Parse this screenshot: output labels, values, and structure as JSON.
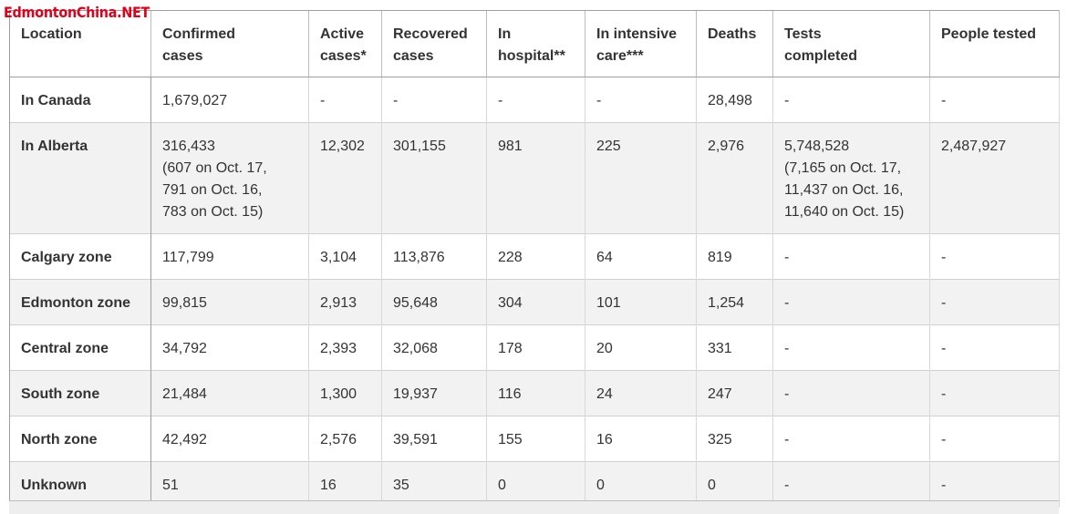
{
  "watermark": "EdmontonChina.NET",
  "table": {
    "headers": [
      "Location",
      "Confirmed\ncases",
      "Active\ncases*",
      "Recovered\ncases",
      "In\nhospital**",
      "In intensive\ncare***",
      "Deaths",
      "Tests\ncompleted",
      "People tested"
    ],
    "rows": [
      [
        "In Canada",
        "1,679,027",
        "-",
        "-",
        "-",
        "-",
        "28,498",
        "-",
        "-"
      ],
      [
        "In Alberta",
        "316,433\n(607 on Oct. 17,\n791 on Oct. 16,\n783 on Oct. 15)",
        "12,302",
        "301,155",
        "981",
        "225",
        "2,976",
        "5,748,528\n(7,165 on Oct. 17,\n11,437 on Oct. 16,\n11,640 on Oct. 15)",
        "2,487,927"
      ],
      [
        "Calgary zone",
        "117,799",
        "3,104",
        "113,876",
        "228",
        "64",
        "819",
        "-",
        "-"
      ],
      [
        "Edmonton zone",
        "99,815",
        "2,913",
        "95,648",
        "304",
        "101",
        "1,254",
        "-",
        "-"
      ],
      [
        "Central zone",
        "34,792",
        "2,393",
        "32,068",
        "178",
        "20",
        "331",
        "-",
        "-"
      ],
      [
        "South zone",
        "21,484",
        "1,300",
        "19,937",
        "116",
        "24",
        "247",
        "-",
        "-"
      ],
      [
        "North zone",
        "42,492",
        "2,576",
        "39,591",
        "155",
        "16",
        "325",
        "-",
        "-"
      ],
      [
        "Unknown",
        "51",
        "16",
        "35",
        "0",
        "0",
        "0",
        "-",
        "-"
      ]
    ]
  }
}
